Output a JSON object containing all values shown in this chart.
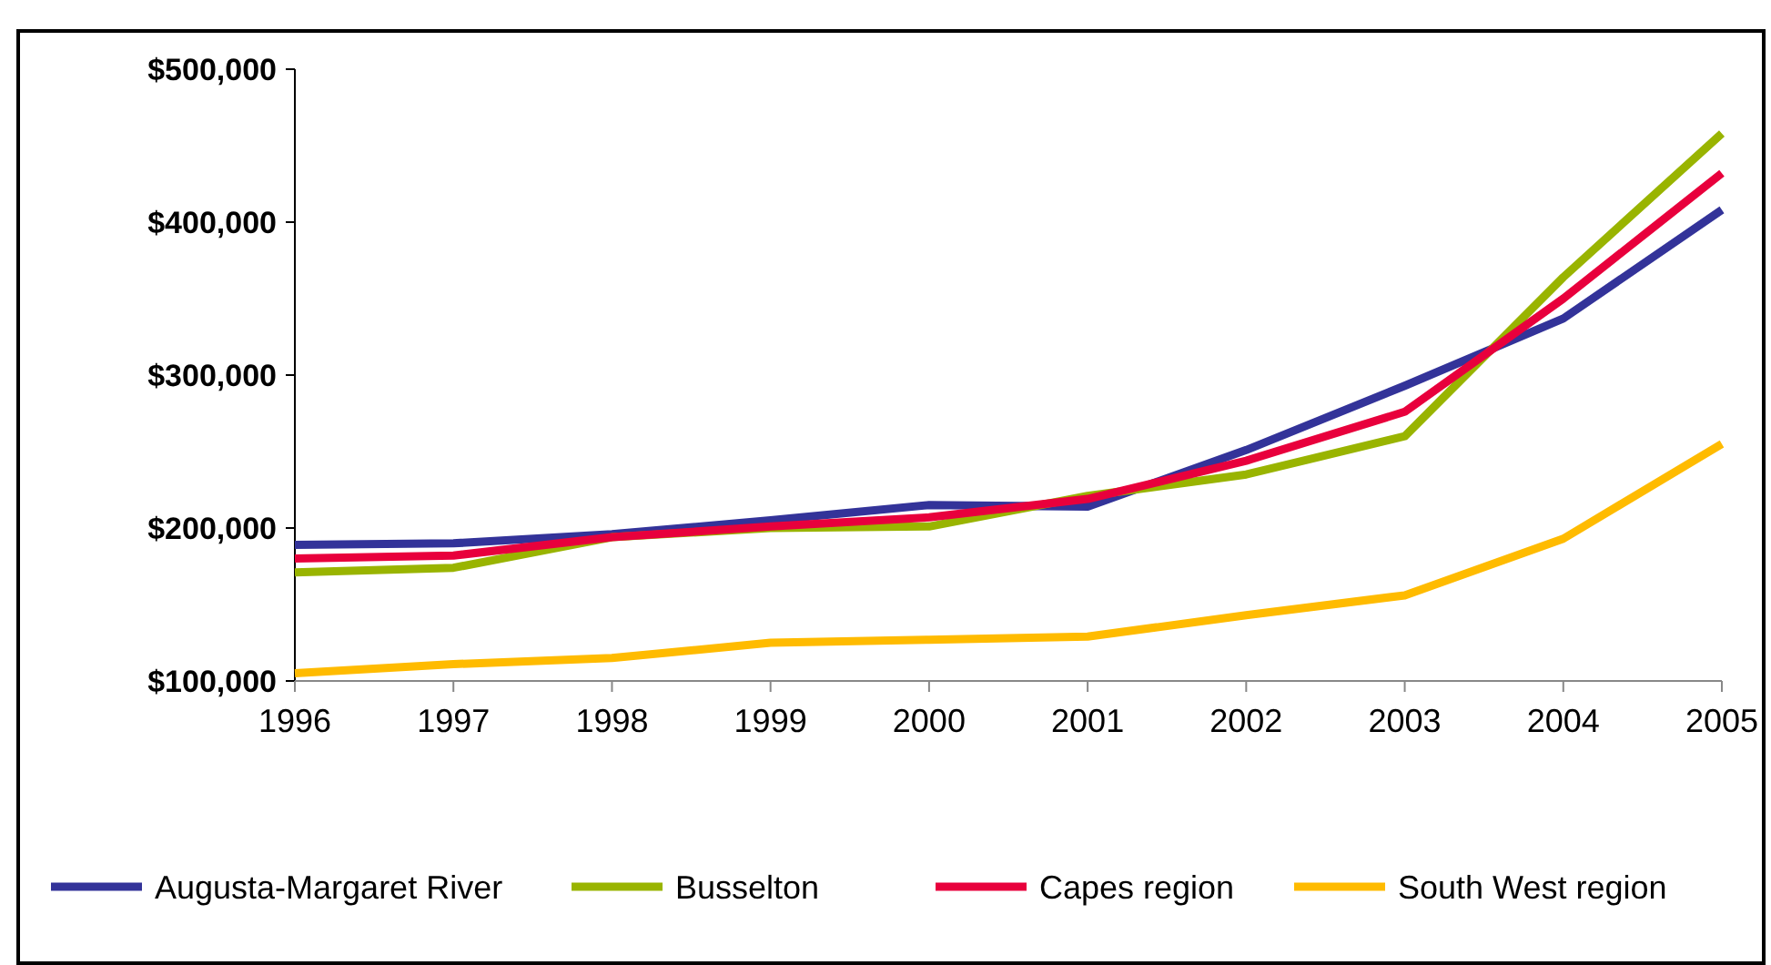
{
  "chart_data": {
    "type": "line",
    "categories": [
      "1996",
      "1997",
      "1998",
      "1999",
      "2000",
      "2001",
      "2002",
      "2003",
      "2004",
      "2005"
    ],
    "series": [
      {
        "name": "Augusta-Margaret River",
        "color": "#333399",
        "values": [
          189000,
          190000,
          196000,
          205000,
          215000,
          214000,
          251000,
          293000,
          337000,
          408000
        ]
      },
      {
        "name": "Busselton",
        "color": "#99b400",
        "values": [
          171000,
          174000,
          194000,
          200000,
          201000,
          221000,
          235000,
          260000,
          364000,
          458000
        ]
      },
      {
        "name": "Capes region",
        "color": "#e8003c",
        "values": [
          180000,
          182000,
          194000,
          201000,
          207000,
          219000,
          244000,
          276000,
          350000,
          432000
        ]
      },
      {
        "name": "South West region",
        "color": "#ffbb00",
        "values": [
          105000,
          111000,
          115000,
          125000,
          127000,
          129000,
          143000,
          156000,
          193000,
          255000
        ]
      }
    ],
    "ylim": [
      100000,
      500000
    ],
    "yticks": [
      {
        "value": 100000,
        "label": "$100,000"
      },
      {
        "value": 200000,
        "label": "$200,000"
      },
      {
        "value": 300000,
        "label": "$300,000"
      },
      {
        "value": 400000,
        "label": "$400,000"
      },
      {
        "value": 500000,
        "label": "$500,000"
      }
    ],
    "grid": false,
    "legend": "bottom",
    "marker": "none",
    "line_style": "solid"
  }
}
